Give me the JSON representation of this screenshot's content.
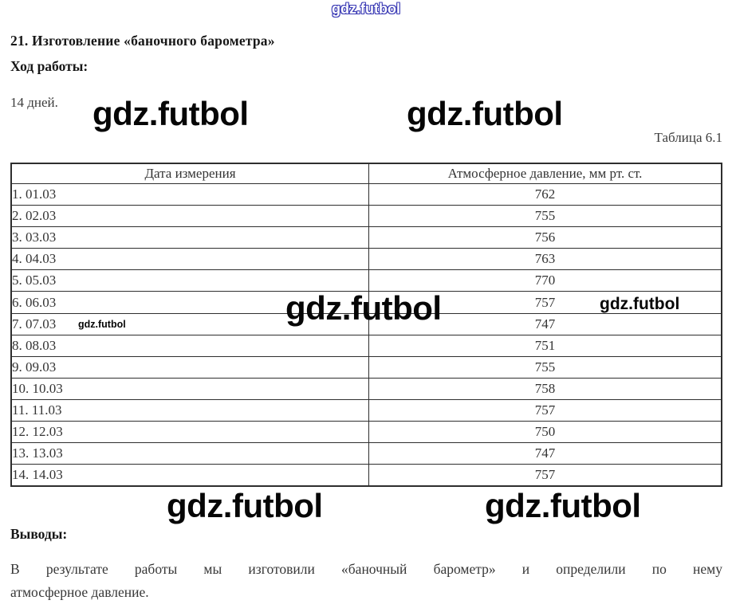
{
  "page": {
    "title": "21. Изготовление «баночного барометра»",
    "work_label": "Ход работы:",
    "duration": "14 дней.",
    "table_caption": "Таблица 6.1"
  },
  "watermark": {
    "text": "gdz.futbol"
  },
  "table": {
    "columns": [
      "Дата измерения",
      "Атмосферное давление, мм рт. ст."
    ],
    "rows": [
      {
        "date": "1. 01.03",
        "pressure": "762"
      },
      {
        "date": "2. 02.03",
        "pressure": "755"
      },
      {
        "date": "3. 03.03",
        "pressure": "756"
      },
      {
        "date": "4. 04.03",
        "pressure": "763"
      },
      {
        "date": "5. 05.03",
        "pressure": "770"
      },
      {
        "date": "6. 06.03",
        "pressure": "757"
      },
      {
        "date": "7. 07.03",
        "pressure": "747"
      },
      {
        "date": "8. 08.03",
        "pressure": "751"
      },
      {
        "date": "9. 09.03",
        "pressure": "755"
      },
      {
        "date": "10. 10.03",
        "pressure": "758"
      },
      {
        "date": "11. 11.03",
        "pressure": "757"
      },
      {
        "date": "12. 12.03",
        "pressure": "750"
      },
      {
        "date": "13. 13.03",
        "pressure": "747"
      },
      {
        "date": "14. 14.03",
        "pressure": "757"
      }
    ]
  },
  "conclusions": {
    "label": "Выводы:",
    "line1": "В результате работы мы изготовили «баночный барометр» и определили по нему",
    "line2": "атмосферное давление."
  }
}
